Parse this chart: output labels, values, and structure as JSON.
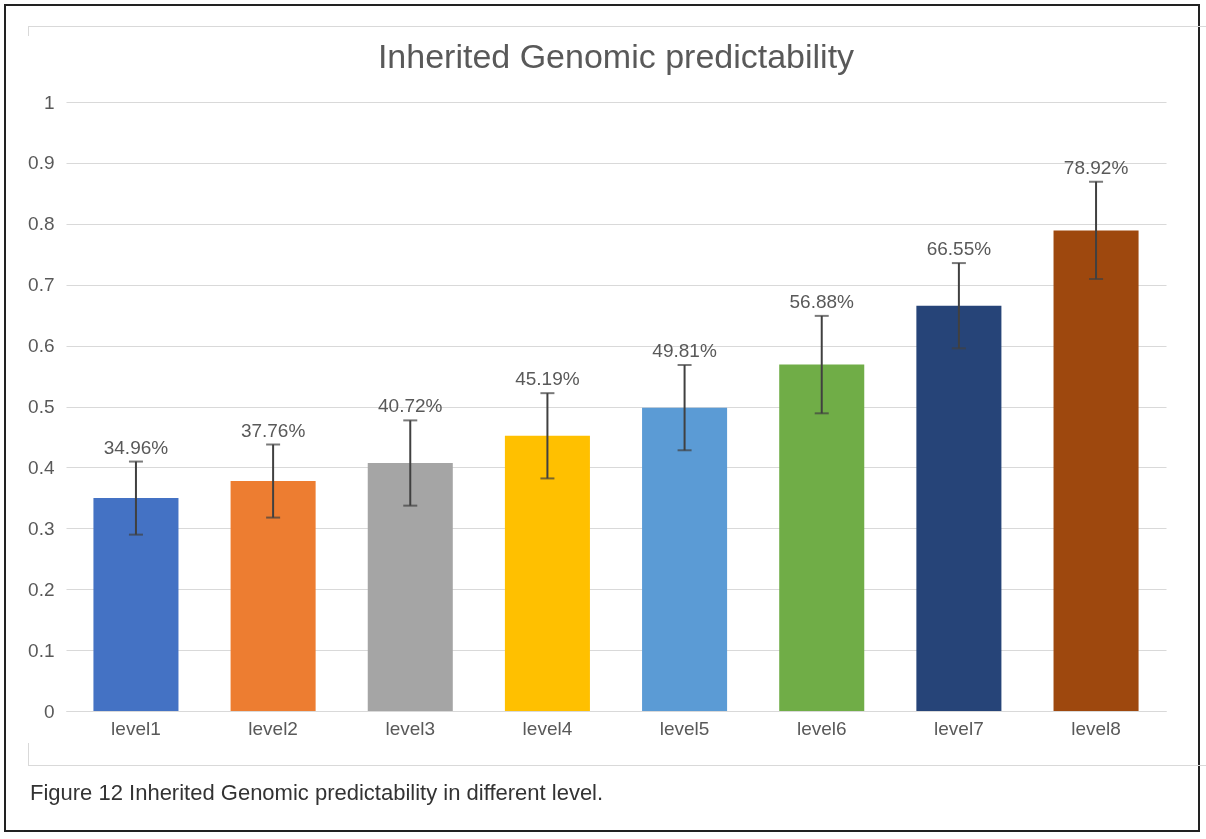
{
  "chart_data": {
    "type": "bar",
    "title": "Inherited Genomic predictability",
    "categories": [
      "level1",
      "level2",
      "level3",
      "level4",
      "level5",
      "level6",
      "level7",
      "level8"
    ],
    "values": [
      0.3496,
      0.3776,
      0.4072,
      0.4519,
      0.4981,
      0.5688,
      0.6655,
      0.7892
    ],
    "colors": [
      "#4472c4",
      "#ed7d31",
      "#a5a5a5",
      "#ffc000",
      "#5b9bd5",
      "#70ad47",
      "#264478",
      "#9e480e"
    ],
    "errors": [
      0.06,
      0.06,
      0.07,
      0.07,
      0.07,
      0.08,
      0.07,
      0.08
    ],
    "value_labels": [
      "34.96%",
      "37.76%",
      "40.72%",
      "45.19%",
      "49.81%",
      "56.88%",
      "66.55%",
      "78.92%"
    ],
    "ylim": [
      0,
      1
    ],
    "yticks": [
      0,
      0.1,
      0.2,
      0.3,
      0.4,
      0.5,
      0.6,
      0.7,
      0.8,
      0.9,
      1
    ],
    "grid": "y",
    "legend": false,
    "annotations": [
      "Figure 12 Inherited Genomic predictability in different level."
    ]
  }
}
